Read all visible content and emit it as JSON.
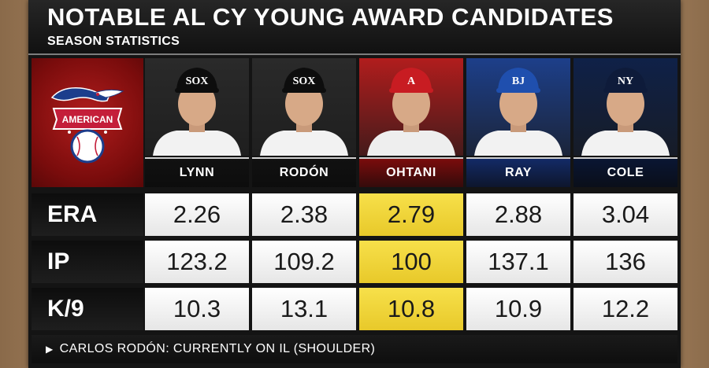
{
  "header": {
    "title": "Notable AL Cy Young Award Candidates",
    "subtitle": "SEASON STATISTICS"
  },
  "logo": {
    "icon": "american-league-logo-icon",
    "text": "AMERICAN"
  },
  "players": [
    {
      "name": "LYNN",
      "team_cap": "SOX",
      "bg": "#2a2a2a",
      "bar": "#111111",
      "stats": [
        "2.26",
        "123.2",
        "10.3"
      ],
      "highlight": false
    },
    {
      "name": "RODÓN",
      "team_cap": "SOX",
      "bg": "#2a2a2a",
      "bar": "#111111",
      "stats": [
        "2.38",
        "109.2",
        "13.1"
      ],
      "highlight": false
    },
    {
      "name": "OHTANI",
      "team_cap": "A",
      "bg": "#b11d1d",
      "bar": "#7a0c0c",
      "stats": [
        "2.79",
        "100",
        "10.8"
      ],
      "highlight": true
    },
    {
      "name": "RAY",
      "team_cap": "BJ",
      "bg": "#1d3f8a",
      "bar": "#132a66",
      "stats": [
        "2.88",
        "137.1",
        "10.9"
      ],
      "highlight": false
    },
    {
      "name": "COLE",
      "team_cap": "NY",
      "bg": "#0f2148",
      "bar": "#0a1633",
      "stats": [
        "3.04",
        "136",
        "12.2"
      ],
      "highlight": false
    }
  ],
  "stat_labels": [
    "ERA",
    "IP",
    "K/9"
  ],
  "footer": {
    "note": "CARLOS RODÓN: CURRENTLY ON IL (SHOULDER)"
  },
  "colors": {
    "highlight": "#f2d43a",
    "frame": "#141414"
  }
}
